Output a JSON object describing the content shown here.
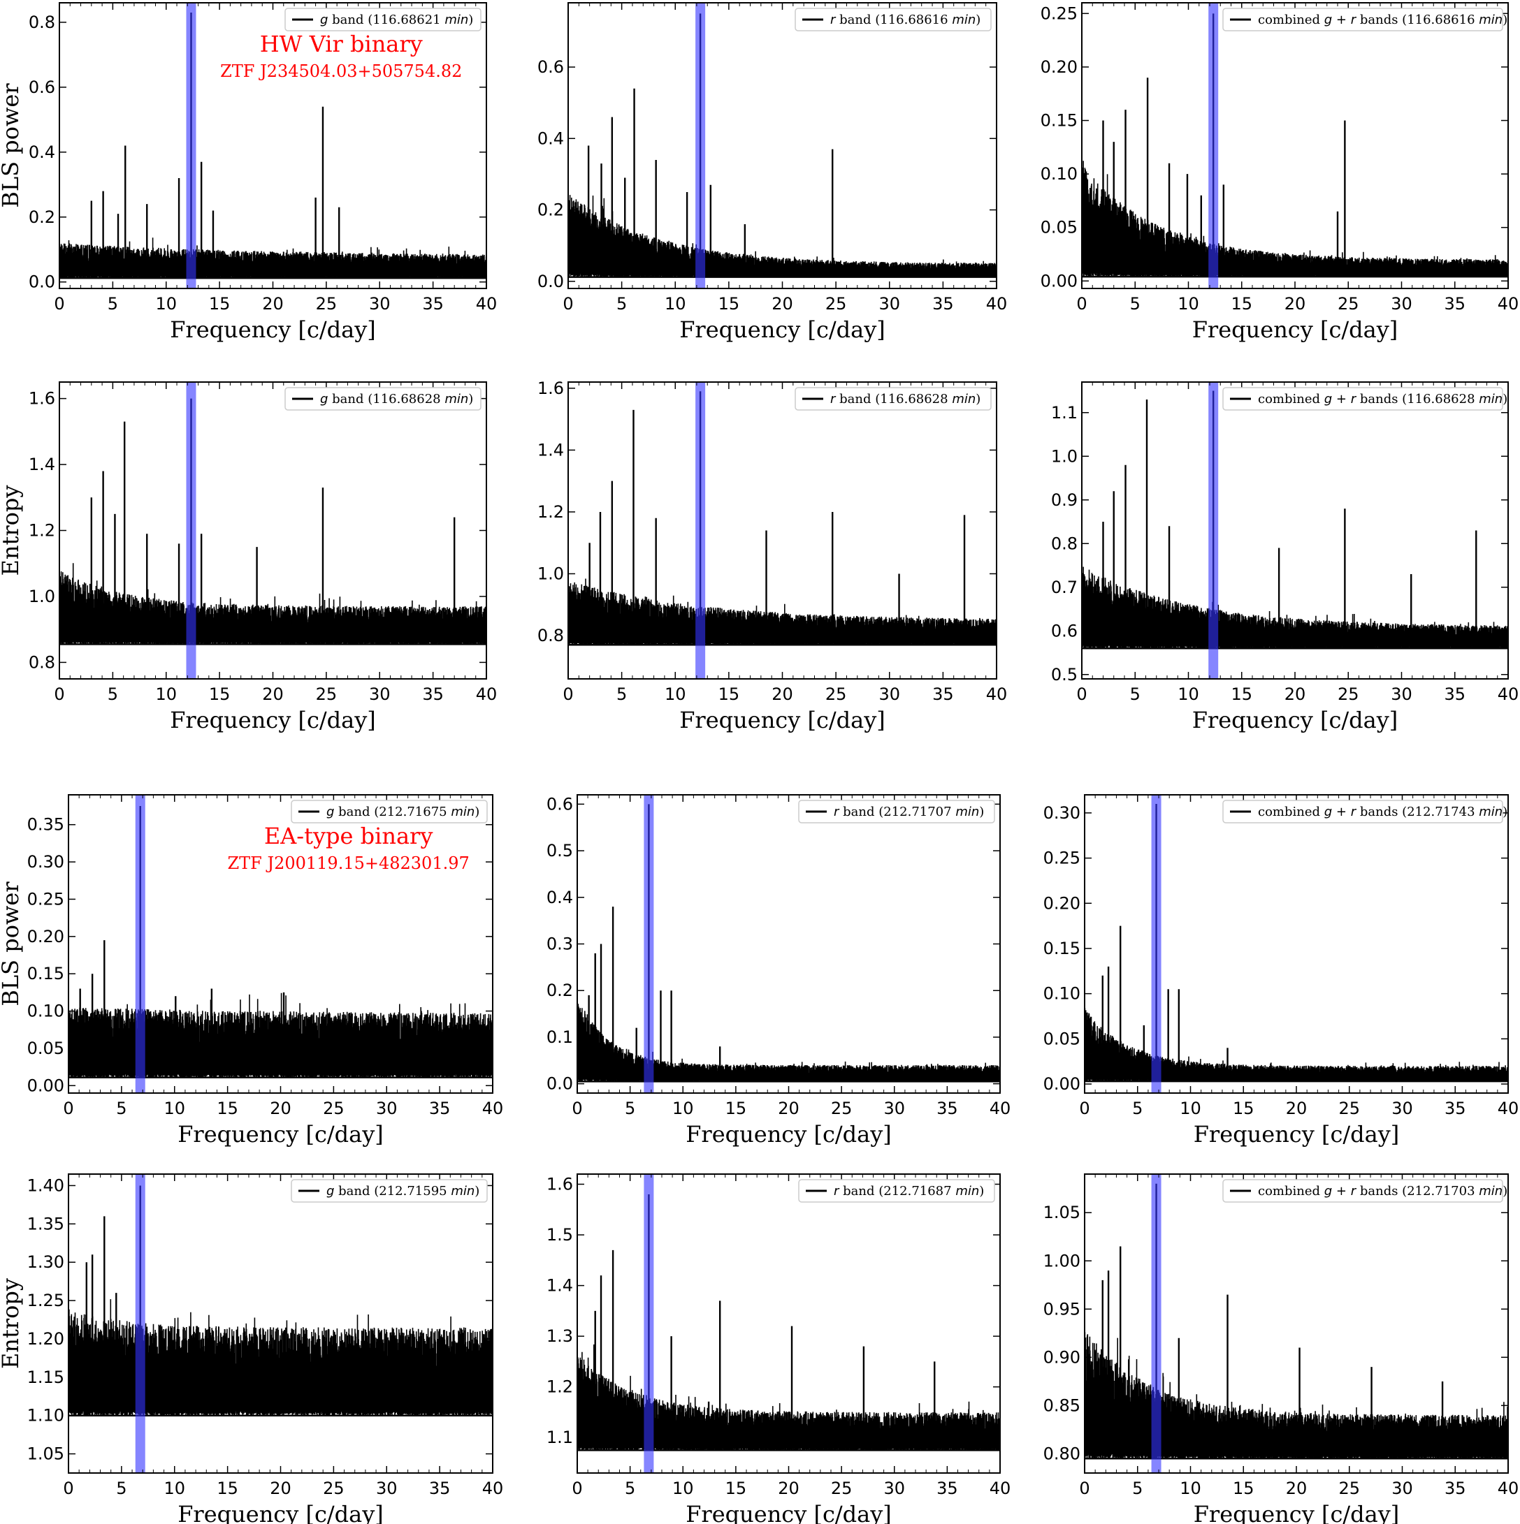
{
  "chart_data": [
    {
      "type": "line",
      "title": "",
      "xlabel": "Frequency [c/day]",
      "ylabel": "BLS power",
      "xlim": [
        0,
        40
      ],
      "ylim": [
        -0.02,
        0.86
      ],
      "xticks": [
        "0",
        "5",
        "10",
        "15",
        "20",
        "25",
        "30",
        "35",
        "40"
      ],
      "yticks": [
        "0.0",
        "0.2",
        "0.4",
        "0.6",
        "0.8"
      ],
      "highlight_x": 12.34,
      "series": [
        {
          "name": "g band (116.68621 min)",
          "name_parts": [
            "",
            "g",
            " band (116.68621 ",
            "min",
            ")"
          ]
        }
      ],
      "noise": {
        "floor": 0.012,
        "top_start": 0.12,
        "top_end": 0.08,
        "decay": 20
      },
      "peaks": [
        {
          "x": 12.34,
          "y": 0.83
        },
        {
          "x": 24.68,
          "y": 0.54
        },
        {
          "x": 6.17,
          "y": 0.42
        },
        {
          "x": 13.3,
          "y": 0.37
        },
        {
          "x": 11.2,
          "y": 0.32
        },
        {
          "x": 4.1,
          "y": 0.28
        },
        {
          "x": 26.2,
          "y": 0.23
        },
        {
          "x": 24,
          "y": 0.26
        },
        {
          "x": 8.2,
          "y": 0.24
        },
        {
          "x": 14.4,
          "y": 0.22
        },
        {
          "x": 3.0,
          "y": 0.25
        },
        {
          "x": 5.5,
          "y": 0.21
        }
      ],
      "annotations": [
        "HW Vir binary",
        "ZTF J234504.03+505754.82"
      ]
    },
    {
      "type": "line",
      "title": "",
      "xlabel": "Frequency [c/day]",
      "ylabel": "",
      "xlim": [
        0,
        40
      ],
      "ylim": [
        -0.02,
        0.78
      ],
      "xticks": [
        "0",
        "5",
        "10",
        "15",
        "20",
        "25",
        "30",
        "35",
        "40"
      ],
      "yticks": [
        "0.0",
        "0.2",
        "0.4",
        "0.6"
      ],
      "highlight_x": 12.34,
      "series": [
        {
          "name": "r band (116.68616 min)",
          "name_parts": [
            "",
            "r",
            " band (116.68616 ",
            "min",
            ")"
          ]
        }
      ],
      "noise": {
        "floor": 0.012,
        "top_start": 0.25,
        "top_end": 0.05,
        "decay": 8
      },
      "peaks": [
        {
          "x": 12.34,
          "y": 0.75
        },
        {
          "x": 6.17,
          "y": 0.54
        },
        {
          "x": 4.1,
          "y": 0.46
        },
        {
          "x": 24.68,
          "y": 0.37
        },
        {
          "x": 8.2,
          "y": 0.34
        },
        {
          "x": 1.9,
          "y": 0.38
        },
        {
          "x": 3.1,
          "y": 0.33
        },
        {
          "x": 5.3,
          "y": 0.29
        },
        {
          "x": 13.3,
          "y": 0.27
        },
        {
          "x": 11.1,
          "y": 0.25
        },
        {
          "x": 16.5,
          "y": 0.16
        }
      ],
      "annotations": []
    },
    {
      "type": "line",
      "title": "",
      "xlabel": "Frequency [c/day]",
      "ylabel": "",
      "xlim": [
        0,
        40
      ],
      "ylim": [
        -0.007,
        0.26
      ],
      "xticks": [
        "0",
        "5",
        "10",
        "15",
        "20",
        "25",
        "30",
        "35",
        "40"
      ],
      "yticks": [
        "0.00",
        "0.05",
        "0.10",
        "0.15",
        "0.20",
        "0.25"
      ],
      "highlight_x": 12.34,
      "series": [
        {
          "name": "combined g + r bands (116.68616 min)",
          "name_parts": [
            "combined ",
            "g + r",
            " bands (116.68616 ",
            "min",
            ")"
          ]
        }
      ],
      "noise": {
        "floor": 0.004,
        "top_start": 0.11,
        "top_end": 0.02,
        "decay": 7
      },
      "peaks": [
        {
          "x": 12.34,
          "y": 0.25
        },
        {
          "x": 6.17,
          "y": 0.19
        },
        {
          "x": 4.1,
          "y": 0.16
        },
        {
          "x": 24.68,
          "y": 0.15
        },
        {
          "x": 2.0,
          "y": 0.15
        },
        {
          "x": 3.0,
          "y": 0.13
        },
        {
          "x": 8.2,
          "y": 0.11
        },
        {
          "x": 9.9,
          "y": 0.1
        },
        {
          "x": 13.3,
          "y": 0.09
        },
        {
          "x": 11.2,
          "y": 0.08
        },
        {
          "x": 24,
          "y": 0.065
        }
      ],
      "annotations": []
    },
    {
      "type": "line",
      "title": "",
      "xlabel": "Frequency [c/day]",
      "ylabel": "Entropy",
      "xlim": [
        0,
        40
      ],
      "ylim": [
        0.75,
        1.65
      ],
      "xticks": [
        "0",
        "5",
        "10",
        "15",
        "20",
        "25",
        "30",
        "35",
        "40"
      ],
      "yticks": [
        "0.8",
        "1.0",
        "1.2",
        "1.4",
        "1.6"
      ],
      "highlight_x": 12.34,
      "series": [
        {
          "name": "g band (116.68628 min)",
          "name_parts": [
            "",
            "g",
            " band (116.68628 ",
            "min",
            ")"
          ]
        }
      ],
      "noise": {
        "floor": 0.855,
        "top_start": 1.08,
        "top_end": 0.97,
        "decay": 6
      },
      "peaks": [
        {
          "x": 12.34,
          "y": 1.6
        },
        {
          "x": 6.1,
          "y": 1.53
        },
        {
          "x": 4.1,
          "y": 1.38
        },
        {
          "x": 24.68,
          "y": 1.33
        },
        {
          "x": 3.0,
          "y": 1.3
        },
        {
          "x": 37,
          "y": 1.24
        },
        {
          "x": 8.2,
          "y": 1.19
        },
        {
          "x": 13.3,
          "y": 1.19
        },
        {
          "x": 5.2,
          "y": 1.25
        },
        {
          "x": 18.5,
          "y": 1.15
        },
        {
          "x": 11.2,
          "y": 1.16
        }
      ],
      "annotations": []
    },
    {
      "type": "line",
      "title": "",
      "xlabel": "Frequency [c/day]",
      "ylabel": "",
      "xlim": [
        0,
        40
      ],
      "ylim": [
        0.66,
        1.62
      ],
      "xticks": [
        "0",
        "5",
        "10",
        "15",
        "20",
        "25",
        "30",
        "35",
        "40"
      ],
      "yticks": [
        "0.8",
        "1.0",
        "1.2",
        "1.4",
        "1.6"
      ],
      "highlight_x": 12.34,
      "series": [
        {
          "name": "r band (116.68628 min)",
          "name_parts": [
            "",
            "r",
            " band (116.68628 ",
            "min",
            ")"
          ]
        }
      ],
      "noise": {
        "floor": 0.77,
        "top_start": 0.98,
        "top_end": 0.85,
        "decay": 12
      },
      "peaks": [
        {
          "x": 12.34,
          "y": 1.59
        },
        {
          "x": 6.1,
          "y": 1.53
        },
        {
          "x": 4.1,
          "y": 1.3
        },
        {
          "x": 3.0,
          "y": 1.2
        },
        {
          "x": 24.68,
          "y": 1.2
        },
        {
          "x": 37,
          "y": 1.19
        },
        {
          "x": 18.5,
          "y": 1.14
        },
        {
          "x": 8.2,
          "y": 1.18
        },
        {
          "x": 30.9,
          "y": 1.0
        },
        {
          "x": 2.0,
          "y": 1.1
        }
      ],
      "annotations": []
    },
    {
      "type": "line",
      "title": "",
      "xlabel": "Frequency [c/day]",
      "ylabel": "",
      "xlim": [
        0,
        40
      ],
      "ylim": [
        0.49,
        1.17
      ],
      "xticks": [
        "0",
        "5",
        "10",
        "15",
        "20",
        "25",
        "30",
        "35",
        "40"
      ],
      "yticks": [
        "0.5",
        "0.6",
        "0.7",
        "0.8",
        "0.9",
        "1.0",
        "1.1"
      ],
      "highlight_x": 12.34,
      "series": [
        {
          "name": "combined g + r bands (116.68628 min)",
          "name_parts": [
            "combined ",
            "g + r",
            " bands (116.68628 ",
            "min",
            ")"
          ]
        }
      ],
      "noise": {
        "floor": 0.56,
        "top_start": 0.75,
        "top_end": 0.61,
        "decay": 10
      },
      "peaks": [
        {
          "x": 12.34,
          "y": 1.15
        },
        {
          "x": 6.1,
          "y": 1.13
        },
        {
          "x": 4.1,
          "y": 0.98
        },
        {
          "x": 3.0,
          "y": 0.92
        },
        {
          "x": 24.68,
          "y": 0.88
        },
        {
          "x": 37,
          "y": 0.83
        },
        {
          "x": 18.5,
          "y": 0.79
        },
        {
          "x": 8.2,
          "y": 0.84
        },
        {
          "x": 30.9,
          "y": 0.73
        },
        {
          "x": 2.0,
          "y": 0.85
        }
      ],
      "annotations": []
    },
    {
      "type": "line",
      "title": "",
      "xlabel": "Frequency [c/day]",
      "ylabel": "BLS power",
      "xlim": [
        0,
        40
      ],
      "ylim": [
        -0.01,
        0.39
      ],
      "xticks": [
        "0",
        "5",
        "10",
        "15",
        "20",
        "25",
        "30",
        "35",
        "40"
      ],
      "yticks": [
        "0.00",
        "0.05",
        "0.10",
        "0.15",
        "0.20",
        "0.25",
        "0.30",
        "0.35"
      ],
      "highlight_x": 6.77,
      "series": [
        {
          "name": "g band (212.71675 min)",
          "name_parts": [
            "",
            "g",
            " band (212.71675 ",
            "min",
            ")"
          ]
        }
      ],
      "noise": {
        "floor": 0.011,
        "top_start": 0.105,
        "top_end": 0.095,
        "decay": 30
      },
      "peaks": [
        {
          "x": 6.77,
          "y": 0.375
        },
        {
          "x": 3.38,
          "y": 0.195
        },
        {
          "x": 2.25,
          "y": 0.15
        },
        {
          "x": 1.1,
          "y": 0.13
        },
        {
          "x": 13.5,
          "y": 0.13
        },
        {
          "x": 20.3,
          "y": 0.125
        },
        {
          "x": 10.1,
          "y": 0.12
        }
      ],
      "annotations": [
        "EA-type binary",
        "ZTF J200119.15+482301.97"
      ]
    },
    {
      "type": "line",
      "title": "",
      "xlabel": "Frequency [c/day]",
      "ylabel": "",
      "xlim": [
        0,
        40
      ],
      "ylim": [
        -0.02,
        0.62
      ],
      "xticks": [
        "0",
        "5",
        "10",
        "15",
        "20",
        "25",
        "30",
        "35",
        "40"
      ],
      "yticks": [
        "0.0",
        "0.1",
        "0.2",
        "0.3",
        "0.4",
        "0.5",
        "0.6"
      ],
      "highlight_x": 6.77,
      "series": [
        {
          "name": "r band (212.71707 min)",
          "name_parts": [
            "",
            "r",
            " band (212.71707 ",
            "min",
            ")"
          ]
        }
      ],
      "noise": {
        "floor": 0.005,
        "top_start": 0.19,
        "top_end": 0.04,
        "decay": 3
      },
      "peaks": [
        {
          "x": 6.77,
          "y": 0.6
        },
        {
          "x": 3.38,
          "y": 0.38
        },
        {
          "x": 1.7,
          "y": 0.28
        },
        {
          "x": 2.25,
          "y": 0.3
        },
        {
          "x": 8.9,
          "y": 0.2
        },
        {
          "x": 7.9,
          "y": 0.2
        },
        {
          "x": 5.6,
          "y": 0.12
        },
        {
          "x": 13.5,
          "y": 0.08
        },
        {
          "x": 1.1,
          "y": 0.19
        }
      ],
      "annotations": []
    },
    {
      "type": "line",
      "title": "",
      "xlabel": "Frequency [c/day]",
      "ylabel": "",
      "xlim": [
        0,
        40
      ],
      "ylim": [
        -0.01,
        0.32
      ],
      "xticks": [
        "0",
        "5",
        "10",
        "15",
        "20",
        "25",
        "30",
        "35",
        "40"
      ],
      "yticks": [
        "0.00",
        "0.05",
        "0.10",
        "0.15",
        "0.20",
        "0.25",
        "0.30"
      ],
      "highlight_x": 6.77,
      "series": [
        {
          "name": "combined g + r bands (212.71743 min)",
          "name_parts": [
            "combined ",
            "g + r",
            " bands (212.71743 ",
            "min",
            ")"
          ]
        }
      ],
      "noise": {
        "floor": 0.003,
        "top_start": 0.085,
        "top_end": 0.02,
        "decay": 4
      },
      "peaks": [
        {
          "x": 6.77,
          "y": 0.31
        },
        {
          "x": 3.38,
          "y": 0.175
        },
        {
          "x": 2.25,
          "y": 0.13
        },
        {
          "x": 1.7,
          "y": 0.12
        },
        {
          "x": 8.9,
          "y": 0.105
        },
        {
          "x": 7.9,
          "y": 0.105
        },
        {
          "x": 5.6,
          "y": 0.065
        },
        {
          "x": 13.5,
          "y": 0.04
        }
      ],
      "annotations": []
    },
    {
      "type": "line",
      "title": "",
      "xlabel": "Frequency [c/day]",
      "ylabel": "Entropy",
      "xlim": [
        0,
        40
      ],
      "ylim": [
        1.025,
        1.415
      ],
      "xticks": [
        "0",
        "5",
        "10",
        "15",
        "20",
        "25",
        "30",
        "35",
        "40"
      ],
      "yticks": [
        "1.05",
        "1.10",
        "1.15",
        "1.20",
        "1.25",
        "1.30",
        "1.35",
        "1.40"
      ],
      "highlight_x": 6.77,
      "series": [
        {
          "name": "g band (212.71595 min)",
          "name_parts": [
            "",
            "g",
            " band (212.71595 ",
            "min",
            ")"
          ]
        }
      ],
      "noise": {
        "floor": 1.1,
        "top_start": 1.24,
        "top_end": 1.215,
        "decay": 5
      },
      "peaks": [
        {
          "x": 6.77,
          "y": 1.4
        },
        {
          "x": 3.38,
          "y": 1.36
        },
        {
          "x": 1.7,
          "y": 1.3
        },
        {
          "x": 2.25,
          "y": 1.31
        },
        {
          "x": 4.5,
          "y": 1.26
        }
      ],
      "annotations": []
    },
    {
      "type": "line",
      "title": "",
      "xlabel": "Frequency [c/day]",
      "ylabel": "",
      "xlim": [
        0,
        40
      ],
      "ylim": [
        1.03,
        1.62
      ],
      "xticks": [
        "0",
        "5",
        "10",
        "15",
        "20",
        "25",
        "30",
        "35",
        "40"
      ],
      "yticks": [
        "1.1",
        "1.2",
        "1.3",
        "1.4",
        "1.5",
        "1.6"
      ],
      "highlight_x": 6.77,
      "series": [
        {
          "name": "r band (212.71687 min)",
          "name_parts": [
            "",
            "r",
            " band (212.71687 ",
            "min",
            ")"
          ]
        }
      ],
      "noise": {
        "floor": 1.075,
        "top_start": 1.27,
        "top_end": 1.15,
        "decay": 5
      },
      "peaks": [
        {
          "x": 6.77,
          "y": 1.58
        },
        {
          "x": 3.38,
          "y": 1.47
        },
        {
          "x": 2.25,
          "y": 1.42
        },
        {
          "x": 13.5,
          "y": 1.37
        },
        {
          "x": 20.3,
          "y": 1.32
        },
        {
          "x": 27.1,
          "y": 1.28
        },
        {
          "x": 33.8,
          "y": 1.25
        },
        {
          "x": 8.9,
          "y": 1.3
        },
        {
          "x": 1.7,
          "y": 1.35
        }
      ],
      "annotations": []
    },
    {
      "type": "line",
      "title": "",
      "xlabel": "Frequency [c/day]",
      "ylabel": "",
      "xlim": [
        0,
        40
      ],
      "ylim": [
        0.78,
        1.09
      ],
      "xticks": [
        "0",
        "5",
        "10",
        "15",
        "20",
        "25",
        "30",
        "35",
        "40"
      ],
      "yticks": [
        "0.80",
        "0.85",
        "0.90",
        "0.95",
        "1.00",
        "1.05"
      ],
      "highlight_x": 6.77,
      "series": [
        {
          "name": "combined g + r bands (212.71703 min)",
          "name_parts": [
            "combined ",
            "g + r",
            " bands (212.71703 ",
            "min",
            ")"
          ]
        }
      ],
      "noise": {
        "floor": 0.795,
        "top_start": 0.93,
        "top_end": 0.84,
        "decay": 6
      },
      "peaks": [
        {
          "x": 6.77,
          "y": 1.08
        },
        {
          "x": 3.38,
          "y": 1.015
        },
        {
          "x": 2.25,
          "y": 0.99
        },
        {
          "x": 13.5,
          "y": 0.965
        },
        {
          "x": 20.3,
          "y": 0.91
        },
        {
          "x": 27.1,
          "y": 0.89
        },
        {
          "x": 33.8,
          "y": 0.875
        },
        {
          "x": 1.7,
          "y": 0.98
        },
        {
          "x": 8.9,
          "y": 0.92
        }
      ],
      "annotations": []
    }
  ]
}
